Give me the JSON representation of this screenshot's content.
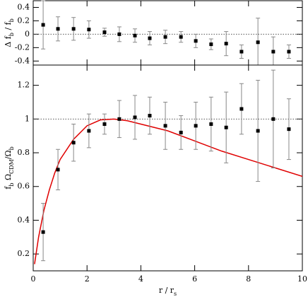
{
  "chart_data": [
    {
      "type": "errorbar",
      "ylabel": [
        {
          "text": "Δ f"
        },
        {
          "text": "b",
          "sub": true
        },
        {
          "text": " / f"
        },
        {
          "text": "b",
          "sub": true
        }
      ],
      "x": [
        0.37,
        0.92,
        1.5,
        2.07,
        2.65,
        3.2,
        3.78,
        4.33,
        4.91,
        5.49,
        6.04,
        6.61,
        7.17,
        7.74,
        8.35,
        8.92,
        9.5
      ],
      "series": [
        {
          "color": "#000000",
          "error_color": "#888888",
          "values": [
            0.14,
            0.08,
            0.08,
            0.07,
            0.03,
            0.0,
            -0.02,
            -0.06,
            -0.04,
            -0.04,
            -0.1,
            -0.15,
            -0.14,
            -0.26,
            -0.12,
            -0.26,
            -0.26
          ],
          "errors": [
            0.36,
            0.18,
            0.17,
            0.13,
            0.06,
            0.11,
            0.1,
            0.1,
            0.1,
            0.08,
            0.1,
            0.08,
            0.18,
            0.1,
            0.36,
            0.22,
            0.1
          ]
        }
      ],
      "ylim": [
        -0.46,
        0.5
      ],
      "yticks": [
        -0.4,
        -0.2,
        0,
        0.2,
        0.4
      ],
      "hline": 0
    },
    {
      "type": "errorbar",
      "xlabel": [
        {
          "text": "r / r"
        },
        {
          "text": "s",
          "sub": true
        }
      ],
      "ylabel": [
        {
          "text": "f"
        },
        {
          "text": "b",
          "sub": true
        },
        {
          "text": " Ω"
        },
        {
          "text": "CDM",
          "sub": true
        },
        {
          "text": "/Ω"
        },
        {
          "text": "b",
          "sub": true
        }
      ],
      "x": [
        0.37,
        0.92,
        1.5,
        2.07,
        2.65,
        3.2,
        3.78,
        4.33,
        4.91,
        5.49,
        6.04,
        6.61,
        7.17,
        7.74,
        8.35,
        8.92,
        9.5
      ],
      "series": [
        {
          "color": "#000000",
          "error_color": "#888888",
          "values": [
            0.33,
            0.7,
            0.86,
            0.93,
            0.97,
            1.0,
            1.01,
            1.02,
            0.96,
            0.92,
            0.96,
            0.97,
            0.95,
            1.06,
            0.93,
            1.0,
            0.94
          ],
          "errors": [
            0.17,
            0.12,
            0.11,
            0.1,
            0.06,
            0.11,
            0.13,
            0.11,
            0.14,
            0.1,
            0.14,
            0.16,
            0.21,
            0.15,
            0.3,
            0.29,
            0.18
          ]
        }
      ],
      "curve": {
        "color": "#e00000",
        "x": [
          0.05,
          0.2,
          0.4,
          0.6,
          0.8,
          1.0,
          1.5,
          2.0,
          2.5,
          3.0,
          3.5,
          4.0,
          5.0,
          6.0,
          7.0,
          8.0,
          9.0,
          10.0
        ],
        "values": [
          0.14,
          0.3,
          0.46,
          0.58,
          0.68,
          0.76,
          0.88,
          0.96,
          0.995,
          1.0,
          0.99,
          0.97,
          0.93,
          0.87,
          0.81,
          0.76,
          0.71,
          0.66
        ]
      },
      "xlim": [
        0,
        10
      ],
      "xticks": [
        0,
        2,
        4,
        6,
        8,
        10
      ],
      "ylim": [
        0.1,
        1.32
      ],
      "yticks": [
        0.2,
        0.4,
        0.6,
        0.8,
        1,
        1.2
      ],
      "hline": 1
    }
  ]
}
